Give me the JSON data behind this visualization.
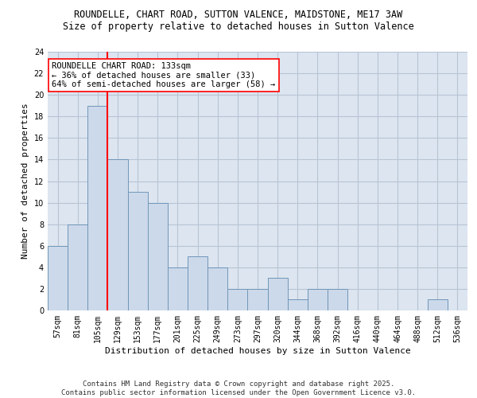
{
  "title1": "ROUNDELLE, CHART ROAD, SUTTON VALENCE, MAIDSTONE, ME17 3AW",
  "title2": "Size of property relative to detached houses in Sutton Valence",
  "xlabel": "Distribution of detached houses by size in Sutton Valence",
  "ylabel": "Number of detached properties",
  "categories": [
    "57sqm",
    "81sqm",
    "105sqm",
    "129sqm",
    "153sqm",
    "177sqm",
    "201sqm",
    "225sqm",
    "249sqm",
    "273sqm",
    "297sqm",
    "320sqm",
    "344sqm",
    "368sqm",
    "392sqm",
    "416sqm",
    "440sqm",
    "464sqm",
    "488sqm",
    "512sqm",
    "536sqm"
  ],
  "values": [
    6,
    8,
    19,
    14,
    11,
    10,
    4,
    5,
    4,
    2,
    2,
    3,
    1,
    2,
    2,
    0,
    0,
    0,
    0,
    1,
    0
  ],
  "bar_color": "#ccd9ea",
  "bar_edge_color": "#7096b8",
  "grid_color": "#b8c4d4",
  "background_color": "#dce5f0",
  "vline_color": "red",
  "vline_x": 2.5,
  "annotation_text": "ROUNDELLE CHART ROAD: 133sqm\n← 36% of detached houses are smaller (33)\n64% of semi-detached houses are larger (58) →",
  "annotation_box_color": "white",
  "annotation_box_edge": "red",
  "ylim": [
    0,
    24
  ],
  "yticks": [
    0,
    2,
    4,
    6,
    8,
    10,
    12,
    14,
    16,
    18,
    20,
    22,
    24
  ],
  "footer": "Contains HM Land Registry data © Crown copyright and database right 2025.\nContains public sector information licensed under the Open Government Licence v3.0.",
  "title_fontsize": 8.5,
  "subtitle_fontsize": 8.5,
  "tick_fontsize": 7,
  "ylabel_fontsize": 8,
  "xlabel_fontsize": 8,
  "annotation_fontsize": 7.5
}
